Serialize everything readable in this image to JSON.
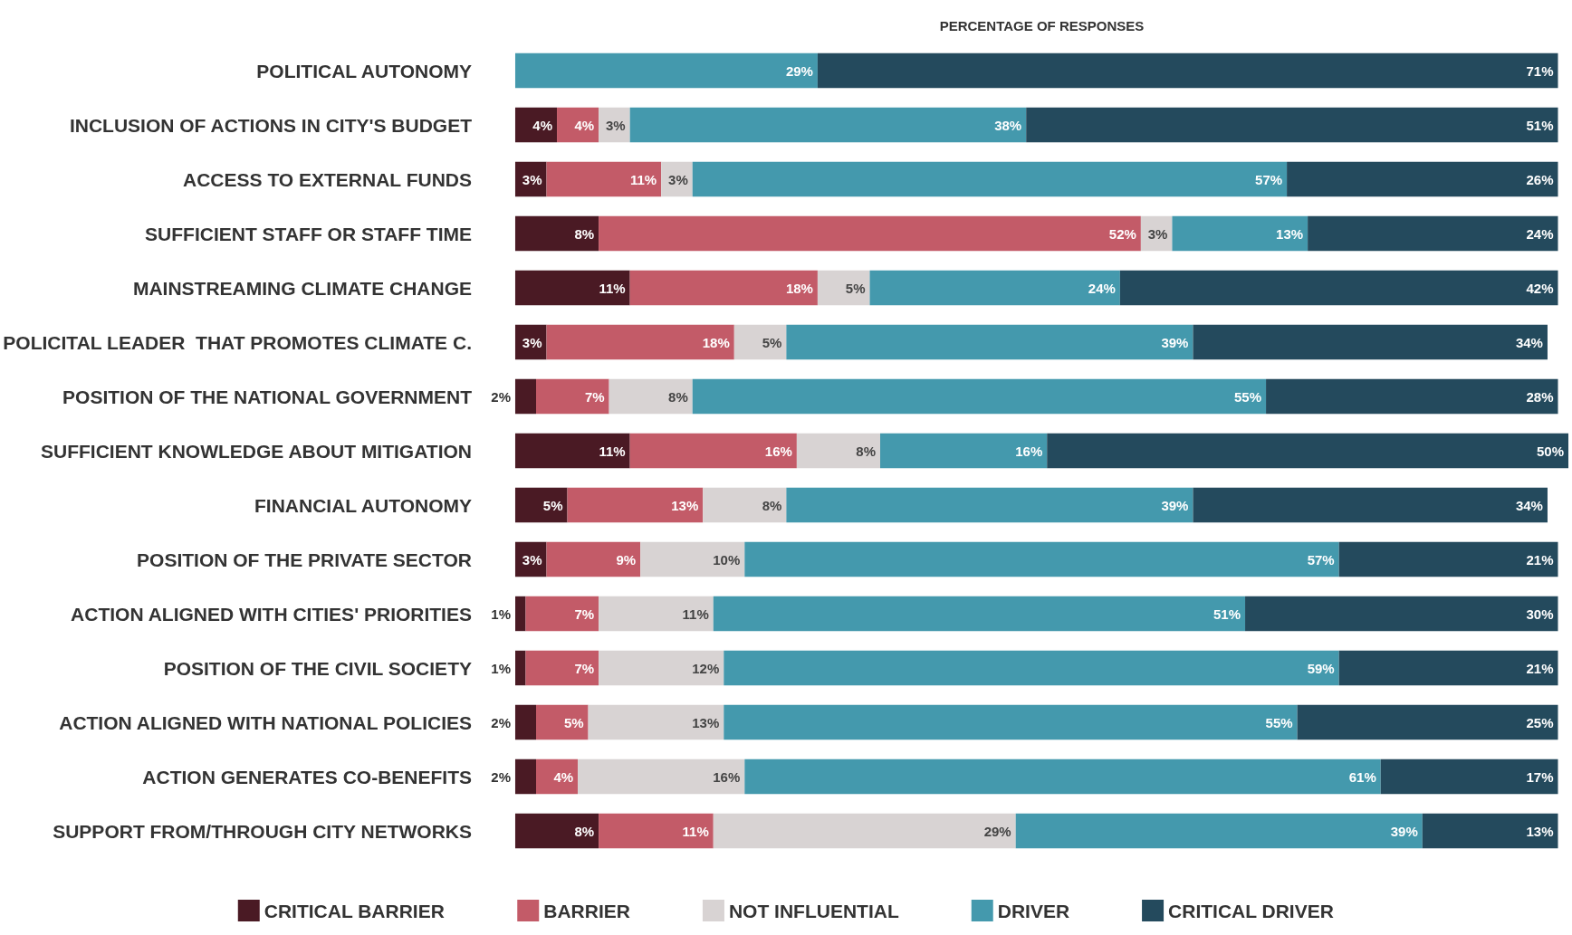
{
  "chart_data": {
    "type": "bar",
    "orientation": "horizontal",
    "stacked": true,
    "xlabel": "PERCENTAGE OF RESPONSES",
    "xlim": [
      0,
      101
    ],
    "tick_labels": "y",
    "grid": false,
    "legend": "bottom",
    "categories": [
      "POLITICAL AUTONOMY",
      "INCLUSION OF ACTIONS IN CITY'S BUDGET",
      "ACCESS TO EXTERNAL FUNDS",
      "SUFFICIENT STAFF OR STAFF TIME",
      "MAINSTREAMING CLIMATE CHANGE",
      "POLICITAL LEADER  THAT PROMOTES CLIMATE C.",
      "POSITION OF THE NATIONAL GOVERNMENT",
      "SUFFICIENT KNOWLEDGE ABOUT MITIGATION",
      "FINANCIAL AUTONOMY",
      "POSITION OF THE PRIVATE SECTOR",
      "ACTION ALIGNED WITH CITIES' PRIORITIES",
      "POSITION OF THE CIVIL SOCIETY",
      "ACTION ALIGNED WITH NATIONAL POLICIES",
      "ACTION GENERATES CO-BENEFITS",
      "SUPPORT FROM/THROUGH CITY NETWORKS"
    ],
    "series": [
      {
        "name": "CRITICAL BARRIER",
        "color": "#4a1a24",
        "values": [
          null,
          4,
          3,
          8,
          11,
          3,
          2,
          11,
          5,
          3,
          1,
          1,
          2,
          2,
          8
        ],
        "value_labels": [
          null,
          "4%",
          "3%",
          "8%",
          "11%",
          "3%",
          "2%",
          "11%",
          "5%",
          "3%",
          "1%",
          "1%",
          "2%",
          "2%",
          "8%"
        ]
      },
      {
        "name": "BARRIER",
        "color": "#c35b68",
        "values": [
          null,
          4,
          11,
          52,
          18,
          18,
          7,
          16,
          13,
          9,
          7,
          7,
          5,
          4,
          11
        ],
        "value_labels": [
          null,
          "4%",
          "11%",
          "52%",
          "18%",
          "18%",
          "7%",
          "16%",
          "13%",
          "9%",
          "7%",
          "7%",
          "5%",
          "4%",
          "11%"
        ]
      },
      {
        "name": "NOT INFLUENTIAL",
        "color": "#d8d3d3",
        "values": [
          null,
          3,
          3,
          3,
          5,
          5,
          8,
          8,
          8,
          10,
          11,
          12,
          13,
          16,
          29
        ],
        "value_labels": [
          null,
          "3%",
          "3%",
          "3%",
          "5%",
          "5%",
          "8%",
          "8%",
          "8%",
          "10%",
          "11%",
          "12%",
          "13%",
          "16%",
          "29%"
        ]
      },
      {
        "name": "DRIVER",
        "color": "#4499ad",
        "values": [
          29,
          38,
          57,
          13,
          24,
          39,
          55,
          16,
          39,
          57,
          51,
          59,
          55,
          61,
          39
        ],
        "value_labels": [
          "29%",
          "38%",
          "57%",
          "13%",
          "24%",
          "39%",
          "55%",
          "16%",
          "39%",
          "57%",
          "51%",
          "59%",
          "55%",
          "61%",
          "39%"
        ]
      },
      {
        "name": "CRITICAL DRIVER",
        "color": "#244a5d",
        "values": [
          71,
          51,
          26,
          24,
          42,
          34,
          28,
          50,
          34,
          21,
          30,
          21,
          25,
          17,
          13
        ],
        "value_labels": [
          "71%",
          "51%",
          "26%",
          "24%",
          "42%",
          "34%",
          "28%",
          "50%",
          "34%",
          "21%",
          "30%",
          "21%",
          "25%",
          "17%",
          "13%"
        ]
      }
    ]
  }
}
